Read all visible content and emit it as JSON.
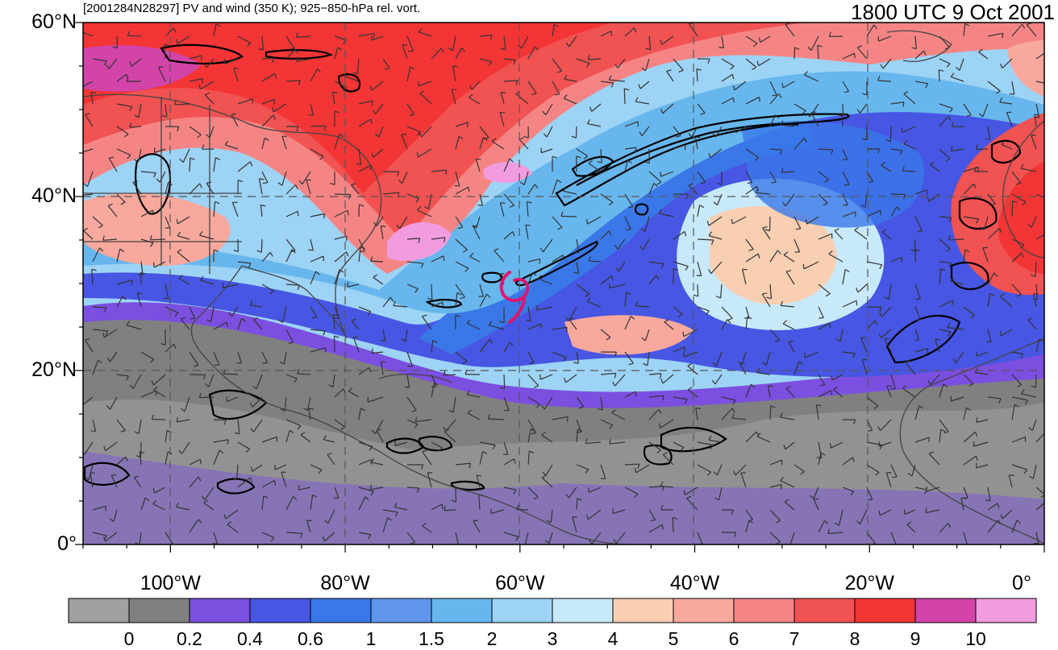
{
  "title_left": "[2001284N28297] PV and wind (350 K); 925−850-hPa rel. vort.",
  "title_right": "1800 UTC 9 Oct 2001",
  "lat_labels": [
    {
      "text": "60°N",
      "lat": 60
    },
    {
      "text": "40°N",
      "lat": 40
    },
    {
      "text": "20°N",
      "lat": 20
    },
    {
      "text": "0°",
      "lat": 0
    }
  ],
  "lon_labels": [
    {
      "text": "100°W",
      "lon": -100
    },
    {
      "text": "80°W",
      "lon": -80
    },
    {
      "text": "60°W",
      "lon": -60
    },
    {
      "text": "40°W",
      "lon": -40
    },
    {
      "text": "20°W",
      "lon": -20
    },
    {
      "text": "0°",
      "lon": 0
    }
  ],
  "map_extent": {
    "lon": [
      -110,
      0
    ],
    "lat": [
      0,
      60
    ]
  },
  "storm_symbol": {
    "lon": -60,
    "lat": 28,
    "color": "#e0156e"
  },
  "colorbar": {
    "colors": [
      "#a0a0a0",
      "#808080",
      "#7b4fe0",
      "#4756e3",
      "#3a78e8",
      "#5f95ec",
      "#67b7ee",
      "#9dd3f5",
      "#c8e9fb",
      "#f9cfb1",
      "#f8a89d",
      "#f58585",
      "#f15252",
      "#f43535",
      "#d244a8",
      "#f29cdf"
    ],
    "labels": [
      "0",
      "0.2",
      "0.4",
      "0.6",
      "1",
      "1.5",
      "2",
      "3",
      "4",
      "5",
      "6",
      "7",
      "8",
      "9",
      "10"
    ]
  }
}
